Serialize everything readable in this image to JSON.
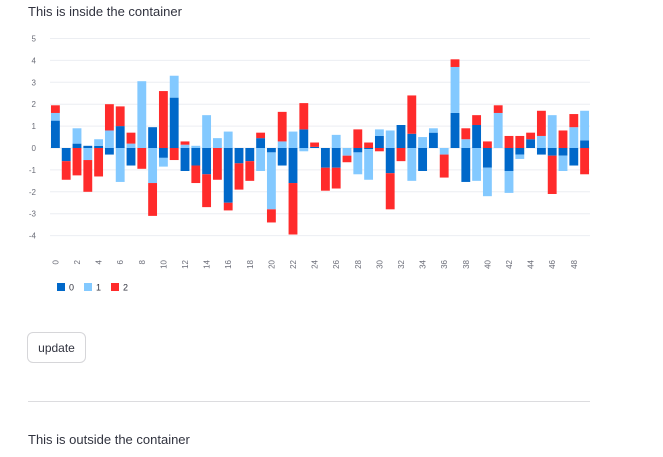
{
  "page": {
    "inside_text": "This is inside the container",
    "update_label": "update",
    "outside_text": "This is outside the container"
  },
  "chart_data": {
    "type": "bar",
    "stacked": true,
    "title": "",
    "xlabel": "",
    "ylabel": "",
    "ylim": [
      -4.5,
      5.2
    ],
    "y_ticks": [
      -4,
      -3,
      -2,
      -1,
      0,
      1,
      2,
      3,
      4,
      5
    ],
    "x_tick_labels": [
      "0",
      "2",
      "4",
      "6",
      "8",
      "10",
      "12",
      "14",
      "16",
      "18",
      "20",
      "22",
      "24",
      "26",
      "28",
      "30",
      "32",
      "34",
      "36",
      "38",
      "40",
      "42",
      "44",
      "46",
      "48"
    ],
    "grid": true,
    "legend_position": "bottom-left",
    "x": [
      0,
      1,
      2,
      3,
      4,
      5,
      6,
      7,
      8,
      9,
      10,
      11,
      12,
      13,
      14,
      15,
      16,
      17,
      18,
      19,
      20,
      21,
      22,
      23,
      24,
      25,
      26,
      27,
      28,
      29,
      30,
      31,
      32,
      33,
      34,
      35,
      36,
      37,
      38,
      39,
      40,
      41,
      42,
      43,
      44,
      45,
      46,
      47,
      48,
      49
    ],
    "series": [
      {
        "name": "0",
        "color": "#0068c9",
        "values": [
          1.25,
          -0.6,
          0.2,
          0.1,
          0.1,
          -0.3,
          1.0,
          -0.8,
          0.0,
          0.95,
          -0.45,
          2.3,
          -1.05,
          -0.8,
          -1.2,
          0.0,
          -2.5,
          -0.7,
          -0.6,
          0.45,
          -0.2,
          -0.8,
          -1.6,
          0.85,
          0.05,
          -0.9,
          -0.9,
          0.0,
          -0.2,
          -0.05,
          0.55,
          -1.15,
          1.05,
          0.65,
          -1.05,
          0.7,
          0.0,
          1.6,
          -1.55,
          1.05,
          -0.9,
          0.0,
          -1.05,
          -0.3,
          0.4,
          -0.3,
          -0.35,
          -0.35,
          -0.8,
          0.35
        ]
      },
      {
        "name": "1",
        "color": "#83c9ff",
        "values": [
          0.35,
          0.0,
          0.7,
          -0.55,
          0.3,
          0.8,
          -1.55,
          0.2,
          3.05,
          -1.6,
          -0.4,
          1.0,
          0.15,
          0.1,
          1.5,
          0.45,
          0.75,
          0.0,
          0.0,
          -1.05,
          -2.6,
          0.3,
          0.75,
          -0.15,
          0.0,
          0.0,
          0.6,
          -0.35,
          -1.0,
          -1.4,
          0.3,
          0.8,
          0.0,
          -1.5,
          0.5,
          0.2,
          -0.3,
          2.1,
          0.4,
          -1.5,
          -1.3,
          1.6,
          -1.0,
          -0.2,
          0.0,
          0.55,
          1.5,
          -0.7,
          0.95,
          1.35
        ]
      },
      {
        "name": "2",
        "color": "#ff2b2b",
        "values": [
          0.35,
          -0.85,
          -1.25,
          -1.45,
          -1.3,
          1.2,
          0.9,
          0.5,
          -0.95,
          -1.5,
          2.6,
          -0.55,
          0.15,
          -0.8,
          -1.5,
          -1.45,
          -0.35,
          -1.2,
          -0.9,
          0.25,
          -0.6,
          1.35,
          -2.35,
          1.2,
          0.2,
          -1.05,
          -0.95,
          -0.3,
          0.85,
          0.25,
          -0.15,
          -1.65,
          -0.6,
          1.75,
          0.0,
          0.0,
          -1.05,
          0.35,
          0.5,
          0.45,
          0.3,
          0.35,
          0.55,
          0.55,
          0.3,
          1.15,
          -1.75,
          0.8,
          0.6,
          -1.2
        ]
      }
    ]
  }
}
